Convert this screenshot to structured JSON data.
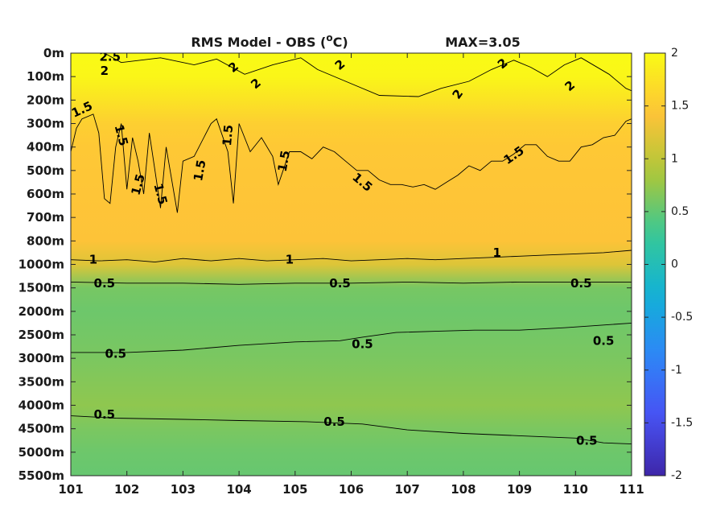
{
  "chart_data": {
    "type": "heatmap",
    "title": "RMS Model - OBS (",
    "title_unit_sup": "o",
    "title_unit_tail": "C)",
    "max_label": "MAX=3.05",
    "x_ticks": [
      "101",
      "102",
      "103",
      "104",
      "105",
      "106",
      "107",
      "108",
      "109",
      "110",
      "111"
    ],
    "y_ticks": [
      "0m",
      "100m",
      "200m",
      "300m",
      "400m",
      "500m",
      "600m",
      "700m",
      "800m",
      "1000m",
      "1500m",
      "2000m",
      "2500m",
      "3000m",
      "3500m",
      "4000m",
      "4500m",
      "5000m",
      "5500m"
    ],
    "colorbar": {
      "ticks": [
        "2",
        "1.5",
        "1",
        "0.5",
        "0",
        "-0.5",
        "-1",
        "-1.5",
        "-2"
      ],
      "range": [
        -2,
        2
      ],
      "colormap": "parula"
    },
    "field_bands": [
      {
        "depth_index": 0,
        "value": 2.0
      },
      {
        "depth_index": 1,
        "value": 1.95
      },
      {
        "depth_index": 2,
        "value": 1.75
      },
      {
        "depth_index": 3,
        "value": 1.55
      },
      {
        "depth_index": 4,
        "value": 1.48
      },
      {
        "depth_index": 6,
        "value": 1.45
      },
      {
        "depth_index": 8,
        "value": 1.42
      },
      {
        "depth_index": 9,
        "value": 1.2
      },
      {
        "depth_index": 10,
        "value": 0.6
      },
      {
        "depth_index": 11,
        "value": 0.55
      },
      {
        "depth_index": 13,
        "value": 0.62
      },
      {
        "depth_index": 15,
        "value": 0.72
      },
      {
        "depth_index": 16,
        "value": 0.62
      },
      {
        "depth_index": 17,
        "value": 0.55
      },
      {
        "depth_index": 18,
        "value": 0.52
      }
    ],
    "contour_labels": [
      {
        "text": "2.5",
        "x": 101.7,
        "y": 0.15,
        "rot": 0
      },
      {
        "text": "2",
        "x": 101.6,
        "y": 0.75,
        "rot": 0
      },
      {
        "text": "2",
        "x": 103.9,
        "y": 0.6,
        "rot": -40
      },
      {
        "text": "2",
        "x": 104.3,
        "y": 1.3,
        "rot": -40
      },
      {
        "text": "2",
        "x": 105.8,
        "y": 0.5,
        "rot": -40
      },
      {
        "text": "2",
        "x": 107.9,
        "y": 1.75,
        "rot": -55
      },
      {
        "text": "2",
        "x": 108.7,
        "y": 0.45,
        "rot": -40
      },
      {
        "text": "2",
        "x": 109.9,
        "y": 1.4,
        "rot": -40
      },
      {
        "text": "1.5",
        "x": 101.2,
        "y": 2.4,
        "rot": -25
      },
      {
        "text": "1.5",
        "x": 101.9,
        "y": 3.5,
        "rot": 75
      },
      {
        "text": "1.5",
        "x": 102.2,
        "y": 5.6,
        "rot": -75
      },
      {
        "text": "1.5",
        "x": 102.6,
        "y": 6.0,
        "rot": 75
      },
      {
        "text": "1.5",
        "x": 103.3,
        "y": 5.0,
        "rot": -80
      },
      {
        "text": "1.5",
        "x": 103.8,
        "y": 3.5,
        "rot": -85
      },
      {
        "text": "1.5",
        "x": 104.8,
        "y": 4.6,
        "rot": -80
      },
      {
        "text": "1.5",
        "x": 106.2,
        "y": 5.5,
        "rot": 40
      },
      {
        "text": "1.5",
        "x": 108.9,
        "y": 4.35,
        "rot": -35
      },
      {
        "text": "1",
        "x": 101.4,
        "y": 8.8,
        "rot": 0
      },
      {
        "text": "1",
        "x": 104.9,
        "y": 8.8,
        "rot": 0
      },
      {
        "text": "1",
        "x": 108.6,
        "y": 8.5,
        "rot": 0
      },
      {
        "text": "0.5",
        "x": 101.6,
        "y": 9.8,
        "rot": 0
      },
      {
        "text": "0.5",
        "x": 105.8,
        "y": 9.8,
        "rot": 0
      },
      {
        "text": "0.5",
        "x": 110.1,
        "y": 9.8,
        "rot": 0
      },
      {
        "text": "0.5",
        "x": 101.8,
        "y": 12.8,
        "rot": 0
      },
      {
        "text": "0.5",
        "x": 106.2,
        "y": 12.4,
        "rot": 0
      },
      {
        "text": "0.5",
        "x": 110.5,
        "y": 12.25,
        "rot": 0
      },
      {
        "text": "0.5",
        "x": 101.6,
        "y": 15.4,
        "rot": 0
      },
      {
        "text": "0.5",
        "x": 105.7,
        "y": 15.7,
        "rot": 0
      },
      {
        "text": "0.5",
        "x": 110.2,
        "y": 16.5,
        "rot": 0
      }
    ],
    "contour_lines": [
      {
        "level": "2",
        "points": [
          [
            101.6,
            0
          ],
          [
            101.9,
            0.4
          ],
          [
            102.6,
            0.2
          ],
          [
            103.2,
            0.5
          ],
          [
            103.6,
            0.25
          ],
          [
            104.1,
            0.9
          ],
          [
            104.6,
            0.5
          ],
          [
            105.1,
            0.2
          ],
          [
            105.4,
            0.7
          ],
          [
            105.9,
            1.2
          ],
          [
            106.5,
            1.8
          ],
          [
            107.2,
            1.85
          ],
          [
            107.6,
            1.5
          ],
          [
            108.1,
            1.2
          ],
          [
            108.5,
            0.7
          ],
          [
            108.9,
            0.3
          ],
          [
            109.2,
            0.6
          ],
          [
            109.5,
            1.0
          ],
          [
            109.8,
            0.5
          ],
          [
            110.1,
            0.2
          ],
          [
            110.6,
            0.9
          ],
          [
            110.9,
            1.5
          ],
          [
            111,
            1.6
          ]
        ]
      },
      {
        "level": "1.5",
        "points": [
          [
            101,
            4.2
          ],
          [
            101.1,
            3.2
          ],
          [
            101.2,
            2.8
          ],
          [
            101.4,
            2.6
          ],
          [
            101.5,
            3.4
          ],
          [
            101.6,
            6.2
          ],
          [
            101.7,
            6.4
          ],
          [
            101.8,
            4
          ],
          [
            101.9,
            3
          ],
          [
            102,
            5.8
          ],
          [
            102.1,
            3.6
          ],
          [
            102.2,
            4.6
          ],
          [
            102.3,
            6
          ],
          [
            102.4,
            3.4
          ],
          [
            102.5,
            5
          ],
          [
            102.6,
            6.6
          ],
          [
            102.7,
            4
          ],
          [
            102.9,
            6.8
          ],
          [
            103.0,
            4.6
          ],
          [
            103.2,
            4.4
          ],
          [
            103.5,
            3
          ],
          [
            103.6,
            2.8
          ],
          [
            103.8,
            4.2
          ],
          [
            103.9,
            6.4
          ],
          [
            104.0,
            3
          ],
          [
            104.2,
            4.2
          ],
          [
            104.4,
            3.6
          ],
          [
            104.6,
            4.4
          ],
          [
            104.7,
            5.6
          ],
          [
            104.9,
            4.2
          ],
          [
            105.1,
            4.2
          ],
          [
            105.3,
            4.5
          ],
          [
            105.5,
            4
          ],
          [
            105.7,
            4.2
          ],
          [
            105.9,
            4.6
          ],
          [
            106.1,
            5
          ],
          [
            106.3,
            5
          ],
          [
            106.5,
            5.4
          ],
          [
            106.7,
            5.6
          ],
          [
            106.9,
            5.6
          ],
          [
            107.1,
            5.7
          ],
          [
            107.3,
            5.6
          ],
          [
            107.5,
            5.8
          ],
          [
            107.7,
            5.5
          ],
          [
            107.9,
            5.2
          ],
          [
            108.1,
            4.8
          ],
          [
            108.3,
            5
          ],
          [
            108.5,
            4.6
          ],
          [
            108.7,
            4.6
          ],
          [
            108.9,
            4.3
          ],
          [
            109.1,
            3.9
          ],
          [
            109.3,
            3.9
          ],
          [
            109.5,
            4.4
          ],
          [
            109.7,
            4.6
          ],
          [
            109.9,
            4.6
          ],
          [
            110.1,
            4.0
          ],
          [
            110.3,
            3.9
          ],
          [
            110.5,
            3.6
          ],
          [
            110.7,
            3.5
          ],
          [
            110.9,
            2.9
          ],
          [
            111,
            2.8
          ]
        ]
      },
      {
        "level": "1",
        "points": [
          [
            101,
            8.8
          ],
          [
            101.5,
            8.85
          ],
          [
            102,
            8.8
          ],
          [
            102.5,
            8.9
          ],
          [
            103,
            8.75
          ],
          [
            103.5,
            8.85
          ],
          [
            104,
            8.75
          ],
          [
            104.5,
            8.85
          ],
          [
            105,
            8.8
          ],
          [
            105.5,
            8.75
          ],
          [
            106,
            8.85
          ],
          [
            106.5,
            8.8
          ],
          [
            107,
            8.75
          ],
          [
            107.5,
            8.8
          ],
          [
            108,
            8.75
          ],
          [
            108.5,
            8.7
          ],
          [
            109,
            8.65
          ],
          [
            109.5,
            8.6
          ],
          [
            110,
            8.55
          ],
          [
            110.5,
            8.5
          ],
          [
            111,
            8.4
          ]
        ]
      },
      {
        "level": "0.5",
        "points": [
          [
            101,
            9.75
          ],
          [
            102,
            9.8
          ],
          [
            103,
            9.8
          ],
          [
            104,
            9.85
          ],
          [
            105,
            9.8
          ],
          [
            106,
            9.8
          ],
          [
            107,
            9.75
          ],
          [
            108,
            9.8
          ],
          [
            109,
            9.75
          ],
          [
            110,
            9.75
          ],
          [
            111,
            9.75
          ]
        ]
      },
      {
        "level": "0.5",
        "points": [
          [
            101,
            12.75
          ],
          [
            102,
            12.75
          ],
          [
            103,
            12.65
          ],
          [
            104,
            12.45
          ],
          [
            105,
            12.3
          ],
          [
            105.8,
            12.25
          ],
          [
            106.2,
            12.1
          ],
          [
            106.8,
            11.9
          ],
          [
            107.5,
            11.85
          ],
          [
            108.2,
            11.8
          ],
          [
            109,
            11.8
          ],
          [
            109.8,
            11.7
          ],
          [
            110.4,
            11.6
          ],
          [
            111,
            11.5
          ]
        ]
      },
      {
        "level": "0.5",
        "points": [
          [
            101,
            15.45
          ],
          [
            101.8,
            15.55
          ],
          [
            103,
            15.6
          ],
          [
            104,
            15.65
          ],
          [
            105.2,
            15.7
          ],
          [
            106.2,
            15.8
          ],
          [
            107.0,
            16.05
          ],
          [
            108,
            16.2
          ],
          [
            109,
            16.3
          ],
          [
            110,
            16.4
          ],
          [
            110.5,
            16.6
          ],
          [
            111,
            16.65
          ]
        ]
      }
    ]
  }
}
